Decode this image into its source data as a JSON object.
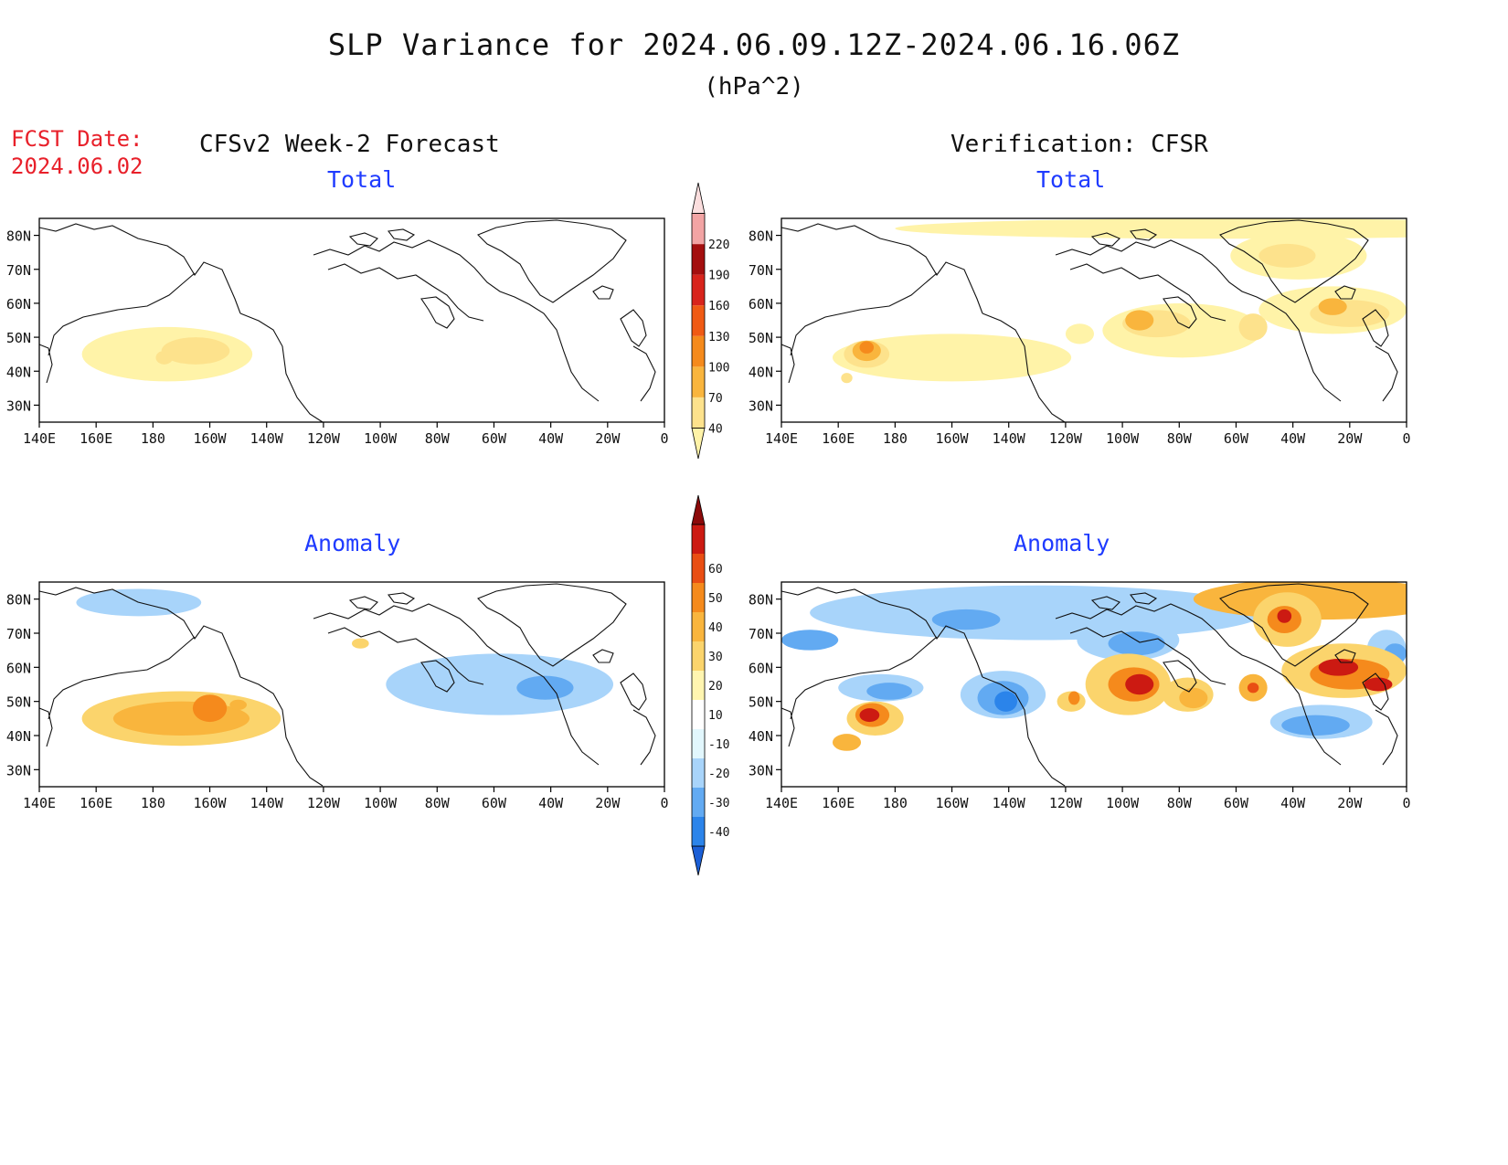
{
  "title": "SLP Variance for 2024.06.09.12Z-2024.06.16.06Z",
  "units": "(hPa^2)",
  "forecast_date": {
    "label": "FCST Date:",
    "value": "2024.06.02"
  },
  "columns": {
    "left": "CFSv2 Week-2 Forecast",
    "right": "Verification: CFSR"
  },
  "panels": {
    "forecast_total": "Total",
    "verification_total": "Total",
    "forecast_anomaly": "Anomaly",
    "verification_anomaly": "Anomaly"
  },
  "axes": {
    "lat_labels": [
      "30N",
      "40N",
      "50N",
      "60N",
      "70N",
      "80N"
    ],
    "lat_values": [
      30,
      40,
      50,
      60,
      70,
      80
    ],
    "lon_labels": [
      "140E",
      "160E",
      "180",
      "160W",
      "140W",
      "120W",
      "100W",
      "80W",
      "60W",
      "40W",
      "20W",
      "0"
    ],
    "lon_values": [
      140,
      160,
      180,
      200,
      220,
      240,
      260,
      280,
      300,
      320,
      340,
      360
    ],
    "lat_range": [
      25,
      85
    ],
    "lon_range": [
      140,
      360
    ]
  },
  "colorbars": {
    "total": {
      "levels": [
        40,
        70,
        100,
        130,
        160,
        190,
        220
      ],
      "colors": [
        "#fff3a8",
        "#fde28c",
        "#f9b53d",
        "#f58a1c",
        "#f05a14",
        "#d8241c",
        "#a40f0f",
        "#f2a4a4",
        "#fbdede"
      ]
    },
    "anomaly": {
      "levels": [
        -40,
        -30,
        -20,
        -10,
        10,
        20,
        30,
        40,
        50,
        60
      ],
      "colors": [
        "#1b5fd6",
        "#2b84ea",
        "#62aaf2",
        "#a8d4fa",
        "#e2f7fd",
        "#ffffff",
        "#fff5b0",
        "#fbd46c",
        "#f9b53d",
        "#f58a1c",
        "#e94e13",
        "#cc1a12",
        "#8c0a0a"
      ]
    }
  },
  "fields": {
    "forecast_total": [
      {
        "lon": 185,
        "lat": 45,
        "rx": 30,
        "ry": 8,
        "level": 1
      },
      {
        "lon": 195,
        "lat": 46,
        "rx": 12,
        "ry": 4,
        "level": 2
      },
      {
        "lon": 184,
        "lat": 44,
        "rx": 3,
        "ry": 2,
        "level": 2
      }
    ],
    "verification_total": [
      {
        "lon": 200,
        "lat": 44,
        "rx": 42,
        "ry": 7,
        "level": 1
      },
      {
        "lon": 170,
        "lat": 45,
        "rx": 8,
        "ry": 4,
        "level": 2
      },
      {
        "lon": 170,
        "lat": 46,
        "rx": 5,
        "ry": 3,
        "level": 3
      },
      {
        "lon": 170,
        "lat": 47,
        "rx": 2.5,
        "ry": 1.8,
        "level": 4
      },
      {
        "lon": 163,
        "lat": 38,
        "rx": 2,
        "ry": 1.5,
        "level": 2
      },
      {
        "lon": 281,
        "lat": 52,
        "rx": 28,
        "ry": 8,
        "level": 1
      },
      {
        "lon": 272,
        "lat": 54,
        "rx": 12,
        "ry": 4,
        "level": 2
      },
      {
        "lon": 266,
        "lat": 55,
        "rx": 5,
        "ry": 3,
        "level": 3
      },
      {
        "lon": 306,
        "lat": 53,
        "rx": 5,
        "ry": 4,
        "level": 2
      },
      {
        "lon": 334,
        "lat": 58,
        "rx": 26,
        "ry": 7,
        "level": 1
      },
      {
        "lon": 340,
        "lat": 57,
        "rx": 14,
        "ry": 4,
        "level": 2
      },
      {
        "lon": 334,
        "lat": 59,
        "rx": 5,
        "ry": 2.5,
        "level": 3
      },
      {
        "lon": 322,
        "lat": 74,
        "rx": 24,
        "ry": 7,
        "level": 1
      },
      {
        "lon": 318,
        "lat": 74,
        "rx": 10,
        "ry": 3.5,
        "level": 2
      },
      {
        "lon": 245,
        "lat": 51,
        "rx": 5,
        "ry": 3,
        "level": 1
      },
      {
        "lon": 300,
        "lat": 82,
        "rx": 120,
        "ry": 3,
        "level": 1
      }
    ],
    "forecast_anomaly": [
      {
        "lon": 175,
        "lat": 79,
        "rx": 22,
        "ry": 4,
        "level": -1
      },
      {
        "lon": 302,
        "lat": 55,
        "rx": 40,
        "ry": 9,
        "level": -1
      },
      {
        "lon": 318,
        "lat": 54,
        "rx": 10,
        "ry": 3.5,
        "level": -2
      },
      {
        "lon": 190,
        "lat": 45,
        "rx": 35,
        "ry": 8,
        "level": 1
      },
      {
        "lon": 190,
        "lat": 45,
        "rx": 24,
        "ry": 5,
        "level": 2
      },
      {
        "lon": 200,
        "lat": 48,
        "rx": 6,
        "ry": 4,
        "level": 3
      },
      {
        "lon": 210,
        "lat": 49,
        "rx": 3,
        "ry": 1.5,
        "level": 2
      },
      {
        "lon": 253,
        "lat": 67,
        "rx": 3,
        "ry": 1.5,
        "level": 1
      }
    ],
    "verification_anomaly": [
      {
        "lon": 230,
        "lat": 76,
        "rx": 80,
        "ry": 8,
        "level": -1
      },
      {
        "lon": 205,
        "lat": 74,
        "rx": 12,
        "ry": 3,
        "level": -2
      },
      {
        "lon": 150,
        "lat": 68,
        "rx": 10,
        "ry": 3,
        "level": -2
      },
      {
        "lon": 175,
        "lat": 54,
        "rx": 15,
        "ry": 4,
        "level": -1
      },
      {
        "lon": 178,
        "lat": 53,
        "rx": 8,
        "ry": 2.5,
        "level": -2
      },
      {
        "lon": 218,
        "lat": 52,
        "rx": 15,
        "ry": 7,
        "level": -1
      },
      {
        "lon": 218,
        "lat": 51,
        "rx": 9,
        "ry": 5,
        "level": -2
      },
      {
        "lon": 219,
        "lat": 50,
        "rx": 4,
        "ry": 3,
        "level": -3
      },
      {
        "lon": 262,
        "lat": 68,
        "rx": 18,
        "ry": 6,
        "level": -1
      },
      {
        "lon": 265,
        "lat": 67,
        "rx": 10,
        "ry": 3.5,
        "level": -2
      },
      {
        "lon": 330,
        "lat": 44,
        "rx": 18,
        "ry": 5,
        "level": -1
      },
      {
        "lon": 328,
        "lat": 43,
        "rx": 12,
        "ry": 3,
        "level": -2
      },
      {
        "lon": 353,
        "lat": 65,
        "rx": 7,
        "ry": 6,
        "level": -1
      },
      {
        "lon": 356,
        "lat": 64,
        "rx": 4,
        "ry": 3,
        "level": -2
      },
      {
        "lon": 173,
        "lat": 45,
        "rx": 10,
        "ry": 5,
        "level": 1
      },
      {
        "lon": 172,
        "lat": 46,
        "rx": 6,
        "ry": 3.5,
        "level": 3
      },
      {
        "lon": 171,
        "lat": 46,
        "rx": 3.5,
        "ry": 2,
        "level": 5
      },
      {
        "lon": 163,
        "lat": 38,
        "rx": 5,
        "ry": 2.5,
        "level": 2
      },
      {
        "lon": 262,
        "lat": 55,
        "rx": 15,
        "ry": 9,
        "level": 1
      },
      {
        "lon": 264,
        "lat": 55,
        "rx": 9,
        "ry": 5,
        "level": 3
      },
      {
        "lon": 266,
        "lat": 55,
        "rx": 5,
        "ry": 3,
        "level": 5
      },
      {
        "lon": 283,
        "lat": 52,
        "rx": 9,
        "ry": 5,
        "level": 1
      },
      {
        "lon": 285,
        "lat": 51,
        "rx": 5,
        "ry": 3,
        "level": 2
      },
      {
        "lon": 306,
        "lat": 54,
        "rx": 5,
        "ry": 4,
        "level": 2
      },
      {
        "lon": 306,
        "lat": 54,
        "rx": 2,
        "ry": 1.5,
        "level": 4
      },
      {
        "lon": 242,
        "lat": 50,
        "rx": 5,
        "ry": 3,
        "level": 1
      },
      {
        "lon": 243,
        "lat": 51,
        "rx": 2,
        "ry": 2,
        "level": 3
      },
      {
        "lon": 330,
        "lat": 80,
        "rx": 45,
        "ry": 6,
        "level": 2
      },
      {
        "lon": 318,
        "lat": 74,
        "rx": 12,
        "ry": 8,
        "level": 1
      },
      {
        "lon": 317,
        "lat": 74,
        "rx": 6,
        "ry": 4,
        "level": 3
      },
      {
        "lon": 317,
        "lat": 75,
        "rx": 2.5,
        "ry": 2,
        "level": 5
      },
      {
        "lon": 338,
        "lat": 59,
        "rx": 22,
        "ry": 8,
        "level": 1
      },
      {
        "lon": 340,
        "lat": 58,
        "rx": 14,
        "ry": 4.5,
        "level": 3
      },
      {
        "lon": 336,
        "lat": 60,
        "rx": 7,
        "ry": 2.5,
        "level": 5
      },
      {
        "lon": 350,
        "lat": 55,
        "rx": 5,
        "ry": 2,
        "level": 5
      }
    ]
  }
}
